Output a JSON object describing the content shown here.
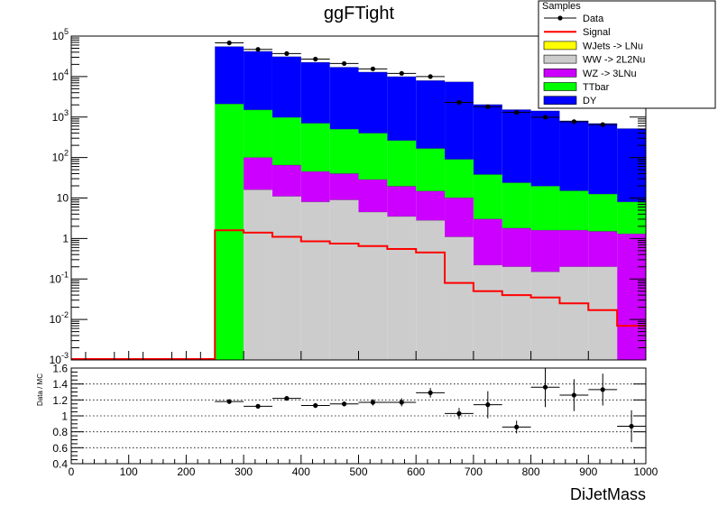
{
  "chart_data": [
    {
      "type": "area",
      "title": "ggFTight",
      "xlabel": "",
      "ylabel": "",
      "yscale": "log",
      "xlim": [
        0,
        1000
      ],
      "ylim": [
        0.001,
        100000
      ],
      "x_bin_edges": [
        250,
        300,
        350,
        400,
        450,
        500,
        550,
        600,
        650,
        700,
        750,
        800,
        850,
        900,
        950,
        1000
      ],
      "yticks": [
        "10^-3",
        "10^-2",
        "10^-1",
        "1",
        "10",
        "10^2",
        "10^3",
        "10^4",
        "10^5"
      ],
      "legend": {
        "title": "Samples",
        "placement": "top-right",
        "entries": [
          "Data",
          "Signal",
          "WJets -> LNu",
          "WW -> 2L2Nu",
          "WZ -> 3LNu",
          "TTbar",
          "DY"
        ]
      },
      "stack_order_bottom_to_top": [
        "WW -> 2L2Nu",
        "WZ -> 3LNu",
        "TTbar",
        "DY"
      ],
      "series": [
        {
          "name": "WW -> 2L2Nu",
          "kind": "stacked_hist",
          "color": "#cccccc",
          "values": [
            0,
            16,
            11,
            8,
            9,
            4.5,
            3.5,
            2.8,
            1.1,
            0.22,
            0.2,
            0.15,
            0.2,
            0.2,
            0
          ]
        },
        {
          "name": "WZ -> 3LNu",
          "kind": "stacked_hist",
          "color": "#cc00ff",
          "values": [
            0,
            84,
            54,
            37,
            31,
            24,
            16,
            12,
            9,
            2.8,
            1.6,
            1.45,
            1.4,
            1.3,
            1.3
          ]
        },
        {
          "name": "TTbar",
          "kind": "stacked_hist",
          "color": "#00ff00",
          "values": [
            2100,
            1400,
            910,
            655,
            460,
            370,
            243,
            152,
            80,
            35,
            22,
            18,
            13.5,
            11,
            6.7
          ]
        },
        {
          "name": "DY",
          "kind": "stacked_hist",
          "color": "#0000ff",
          "values": [
            52900,
            40500,
            30000,
            21800,
            16500,
            12500,
            9700,
            7800,
            7300,
            2000,
            1500,
            1400,
            790,
            680,
            510
          ]
        },
        {
          "name": "WJets -> LNu",
          "kind": "stacked_hist",
          "color": "#ffff00",
          "values": [
            0,
            0,
            0,
            0,
            0,
            0,
            0,
            0,
            0,
            0,
            0,
            0,
            0,
            0,
            0
          ]
        },
        {
          "name": "Signal",
          "kind": "step",
          "color": "#ff0000",
          "x_bin_edges": [
            0,
            50,
            100,
            150,
            200,
            250,
            300,
            350,
            400,
            450,
            500,
            550,
            600,
            650,
            700,
            750,
            800,
            850,
            900,
            950,
            1000
          ],
          "values": [
            0.001,
            0.001,
            0.001,
            0.001,
            0.001,
            1.6,
            1.4,
            1.1,
            0.85,
            0.75,
            0.65,
            0.55,
            0.45,
            0.08,
            0.05,
            0.04,
            0.035,
            0.025,
            0.017,
            0.007
          ]
        },
        {
          "name": "Data",
          "kind": "points",
          "color": "#000000",
          "x": [
            275,
            325,
            375,
            425,
            475,
            525,
            575,
            625,
            675,
            725,
            775,
            825,
            875,
            925
          ],
          "values": [
            68000,
            47000,
            37000,
            27000,
            21000,
            15500,
            12000,
            10000,
            2300,
            1800,
            1300,
            990,
            770,
            650
          ]
        }
      ]
    },
    {
      "type": "scatter",
      "title": "",
      "xlabel": "DiJetMass",
      "ylabel": "Data / MC",
      "xlim": [
        0,
        1000
      ],
      "ylim": [
        0.4,
        1.6
      ],
      "xticks": [
        "0",
        "100",
        "200",
        "300",
        "400",
        "500",
        "600",
        "700",
        "800",
        "900",
        "1000"
      ],
      "yticks": [
        "0.4",
        "0.6",
        "0.8",
        "1",
        "1.2",
        "1.4",
        "1.6"
      ],
      "grid": "horizontal dotted",
      "series": [
        {
          "name": "",
          "kind": "points_with_errors",
          "color": "#000000",
          "x": [
            275,
            325,
            375,
            425,
            475,
            525,
            575,
            625,
            675,
            725,
            775,
            825,
            875,
            925,
            975
          ],
          "y": [
            1.18,
            1.12,
            1.22,
            1.13,
            1.15,
            1.17,
            1.17,
            1.29,
            1.03,
            1.14,
            0.86,
            1.36,
            1.26,
            1.33,
            0.87
          ],
          "yerr": [
            0.02,
            0.02,
            0.03,
            0.03,
            0.03,
            0.04,
            0.05,
            0.06,
            0.07,
            0.17,
            0.08,
            0.25,
            0.2,
            0.2,
            0.2
          ]
        }
      ]
    }
  ]
}
